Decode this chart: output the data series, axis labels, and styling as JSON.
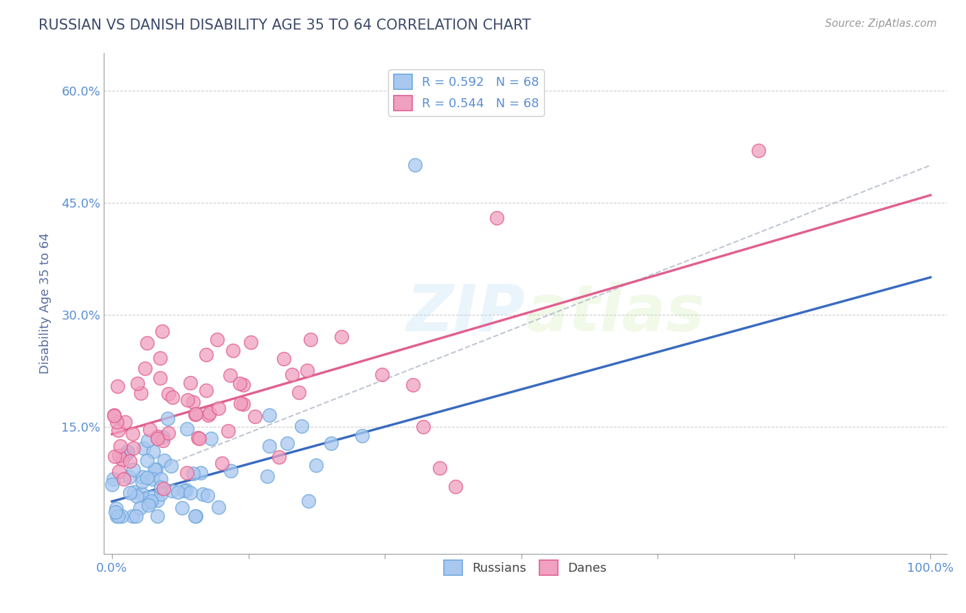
{
  "title": "RUSSIAN VS DANISH DISABILITY AGE 35 TO 64 CORRELATION CHART",
  "source_text": "Source: ZipAtlas.com",
  "ylabel": "Disability Age 35 to 64",
  "xlim": [
    -0.01,
    1.02
  ],
  "ylim": [
    -0.02,
    0.65
  ],
  "yticks": [
    0.15,
    0.3,
    0.45,
    0.6
  ],
  "yticklabels": [
    "15.0%",
    "30.0%",
    "45.0%",
    "60.0%"
  ],
  "russian_color": "#6fa8dc",
  "danish_color": "#e06090",
  "russian_line_color": "#3a6bbf",
  "danish_line_color": "#e06090",
  "legend_R_russian": "R = 0.592",
  "legend_R_danish": "R = 0.544",
  "legend_N": "N = 68",
  "watermark": "ZIPAtlas",
  "background_color": "#ffffff",
  "grid_color": "#cccccc",
  "title_color": "#3d4a6b",
  "axis_label_color": "#5a6ea0",
  "tick_label_color": "#5a8fd4",
  "russian_scatter_color": "#a8c8f0",
  "danish_scatter_color": "#f0a0c0",
  "russian_line_slope": 0.3,
  "russian_line_intercept": 0.05,
  "danish_line_slope": 0.32,
  "danish_line_intercept": 0.14,
  "ref_line_slope": 0.43,
  "ref_line_intercept": 0.07
}
